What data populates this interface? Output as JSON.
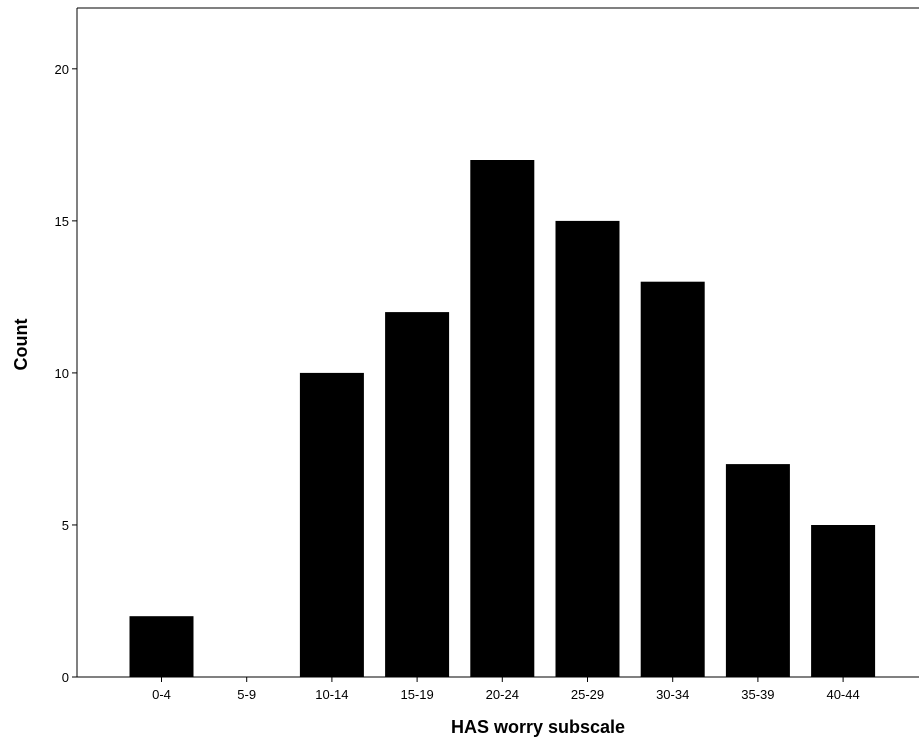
{
  "chart_data": {
    "type": "bar",
    "title": "",
    "xlabel": "HAS worry subscale",
    "ylabel": "Count",
    "categories": [
      "0-4",
      "5-9",
      "10-14",
      "15-19",
      "20-24",
      "25-29",
      "30-34",
      "35-39",
      "40-44"
    ],
    "values": [
      2,
      0,
      10,
      12,
      17,
      15,
      13,
      7,
      5
    ],
    "ylim": [
      0,
      22
    ],
    "yticks": [
      0,
      5,
      10,
      15,
      20
    ],
    "grid": false,
    "legend": "none",
    "colors": {
      "bar": "#000000",
      "axis": "#000000",
      "background": "#ffffff"
    }
  }
}
